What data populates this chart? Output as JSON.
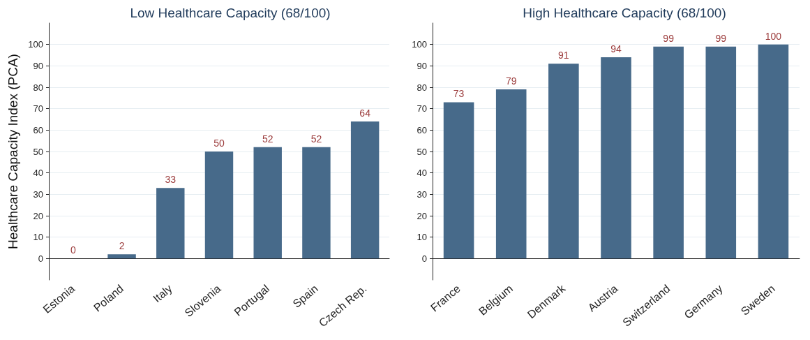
{
  "chart_data": [
    {
      "type": "bar",
      "title": "Low Healthcare Capacity (68/100)",
      "ylabel": "Healthcare Capacity Index (PCA)",
      "categories": [
        "Estonia",
        "Poland",
        "Italy",
        "Slovenia",
        "Portugal",
        "Spain",
        "Czech Rep."
      ],
      "series": [
        {
          "color": "#476a8a",
          "values": [
            0,
            2,
            33,
            50,
            52,
            52,
            64
          ]
        }
      ],
      "ylim": [
        -10,
        110
      ],
      "yticks": [
        0,
        10,
        20,
        30,
        40,
        50,
        60,
        70,
        80,
        90,
        100
      ],
      "grid": "y",
      "data_labels": true
    },
    {
      "type": "bar",
      "title": "High Healthcare Capacity (68/100)",
      "categories": [
        "France",
        "Belgium",
        "Denmark",
        "Austria",
        "Switzerland",
        "Germany",
        "Sweden"
      ],
      "series": [
        {
          "color": "#476a8a",
          "values": [
            73,
            79,
            91,
            94,
            99,
            99,
            100
          ]
        }
      ],
      "ylim": [
        -10,
        110
      ],
      "yticks": [
        0,
        10,
        20,
        30,
        40,
        50,
        60,
        70,
        80,
        90,
        100
      ],
      "grid": "y",
      "data_labels": true
    }
  ]
}
